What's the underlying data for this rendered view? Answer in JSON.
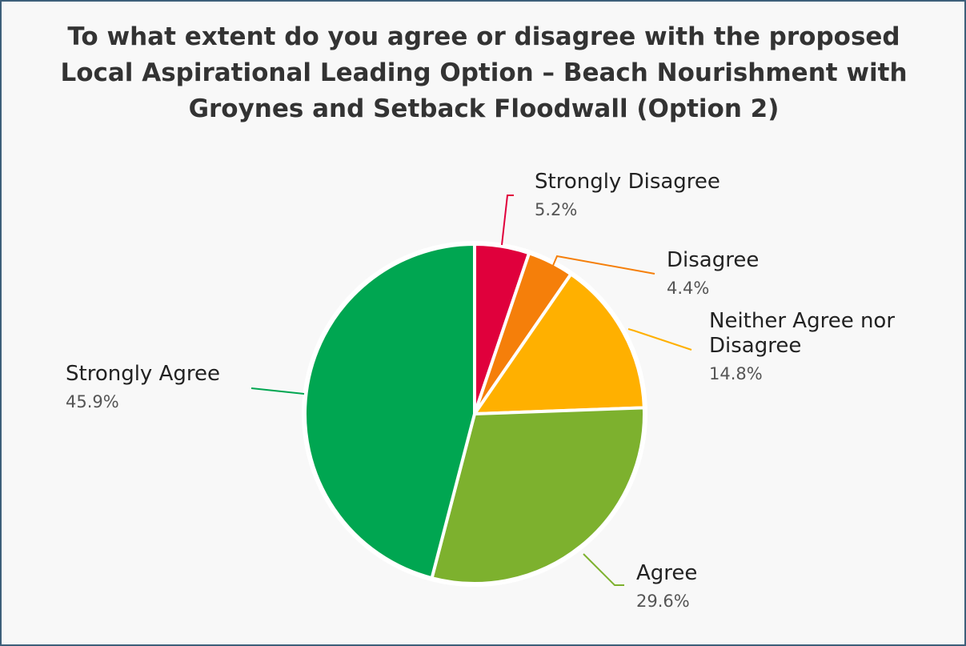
{
  "chart_data": {
    "type": "pie",
    "title": "To what extent do you agree or disagree with the proposed Local Aspirational Leading Option – Beach Nourishment with Groynes and Setback Floodwall (Option 2)",
    "slices": [
      {
        "label": "Strongly Disagree",
        "value": 5.2,
        "value_label": "5.2%",
        "color": "#e0003c"
      },
      {
        "label": "Disagree",
        "value": 4.4,
        "value_label": "4.4%",
        "color": "#f57f0a"
      },
      {
        "label": "Neither Agree nor Disagree",
        "label_lines": [
          "Neither Agree nor",
          "Disagree"
        ],
        "value": 14.8,
        "value_label": "14.8%",
        "color": "#ffb000"
      },
      {
        "label": "Agree",
        "value": 29.6,
        "value_label": "29.6%",
        "color": "#7db12e"
      },
      {
        "label": "Strongly Agree",
        "value": 45.9,
        "value_label": "45.9%",
        "color": "#00a651"
      }
    ],
    "start": "12 o'clock",
    "direction": "clockwise",
    "legend": "none (slices labelled directly)"
  }
}
